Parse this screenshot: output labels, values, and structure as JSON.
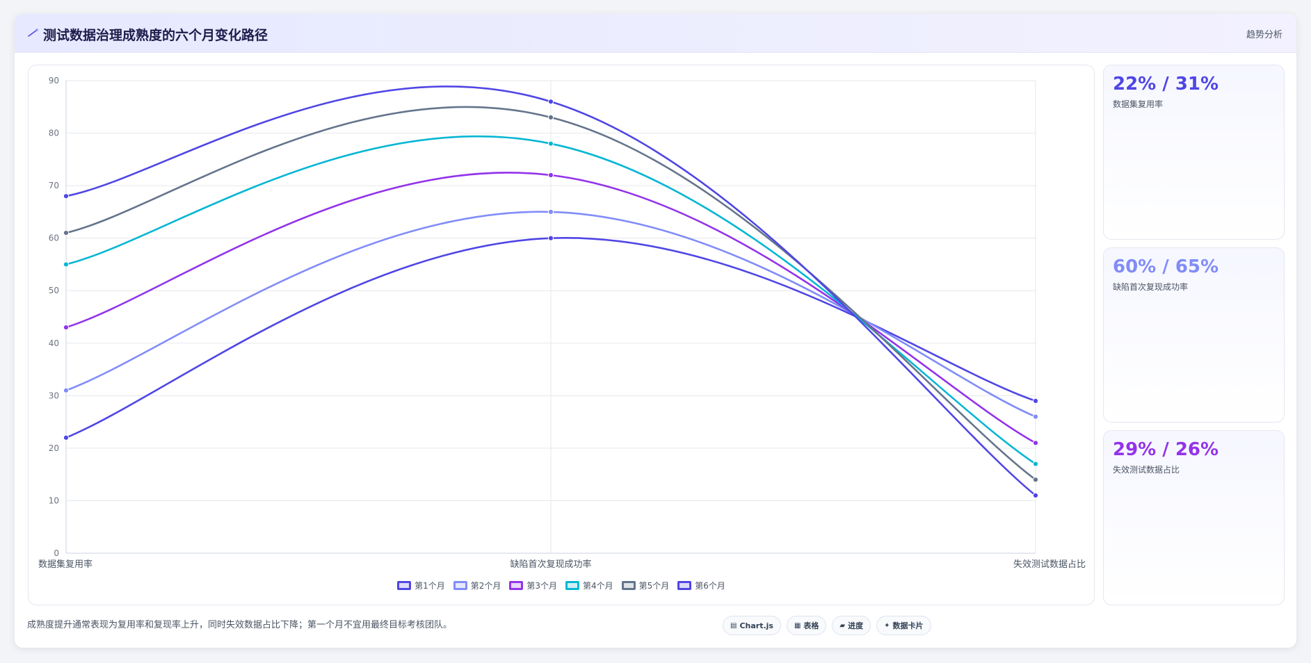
{
  "header": {
    "title": "测试数据治理成熟度的六个月变化路径",
    "tag": "趋势分析",
    "icon": "wand-icon"
  },
  "chart_data": {
    "type": "line",
    "categories": [
      "数据集复用率",
      "缺陷首次复现成功率",
      "失效测试数据占比"
    ],
    "ylim": [
      0,
      90
    ],
    "yticks": [
      0,
      10,
      20,
      30,
      40,
      50,
      60,
      70,
      80,
      90
    ],
    "grid": true,
    "legend_placement": "bottom",
    "series": [
      {
        "name": "第1个月",
        "values": [
          22,
          60,
          29
        ],
        "color": "#4f46e5"
      },
      {
        "name": "第2个月",
        "values": [
          31,
          65,
          26
        ],
        "color": "#818cf8"
      },
      {
        "name": "第3个月",
        "values": [
          43,
          72,
          21
        ],
        "color": "#9333ea"
      },
      {
        "name": "第4个月",
        "values": [
          55,
          78,
          17
        ],
        "color": "#06b6d4"
      },
      {
        "name": "第5个月",
        "values": [
          61,
          83,
          14
        ],
        "color": "#64748b"
      },
      {
        "name": "第6个月",
        "values": [
          68,
          86,
          11
        ],
        "color": "#4f46e5"
      }
    ]
  },
  "kpis": [
    {
      "value": "22% / 31%",
      "label": "数据集复用率",
      "color": "#4f46e5"
    },
    {
      "value": "60% / 65%",
      "label": "缺陷首次复现成功率",
      "color": "#818cf8"
    },
    {
      "value": "29% / 26%",
      "label": "失效测试数据占比",
      "color": "#9333ea"
    }
  ],
  "footer": {
    "note": "成熟度提升通常表现为复用率和复现率上升，同时失效数据占比下降；第一个月不宜用最终目标考核团队。"
  },
  "chips": [
    {
      "icon": "chart-icon",
      "glyph": "▤",
      "label": "Chart.js"
    },
    {
      "icon": "table-icon",
      "glyph": "▦",
      "label": "表格"
    },
    {
      "icon": "progress-icon",
      "glyph": "▰",
      "label": "进度"
    },
    {
      "icon": "sparkle-icon",
      "glyph": "✦",
      "label": "数据卡片"
    }
  ]
}
